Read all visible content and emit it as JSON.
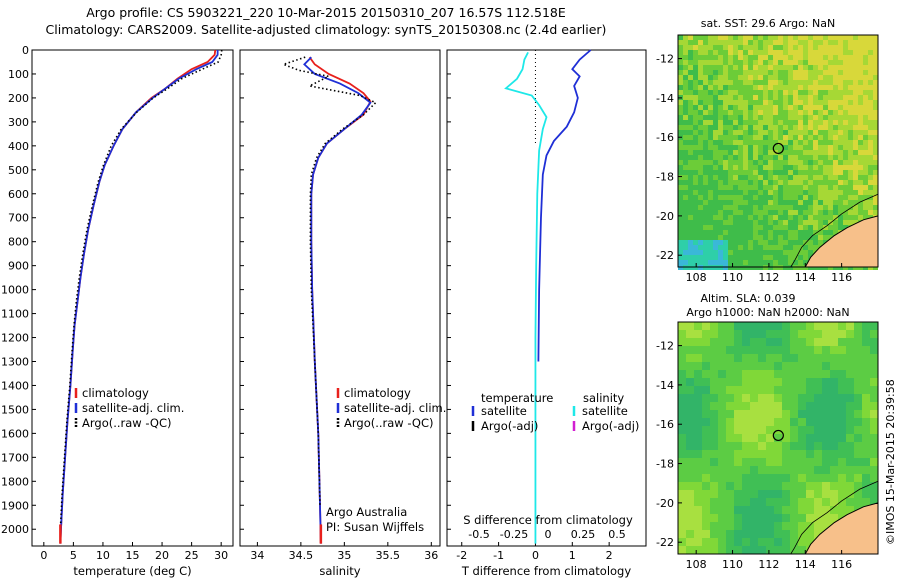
{
  "header": {
    "line1": "Argo profile: CS 5903221_220 10-Mar-2015 20150310_207 16.57S 112.518E",
    "line2": "Climatology: CARS2009. Satellite-adjusted climatology: synTS_20150308.nc (2.4d earlier)"
  },
  "side_stamp": "©IMOS 15-Mar-2015 20:39:58",
  "colors": {
    "climatology": "#e8201c",
    "satellite": "#1f2fd6",
    "argo": "#000000",
    "salinity_sat": "#1ee8e8",
    "salinity_argo": "#d21fd2",
    "land": "#f7c08a"
  },
  "chart_data": [
    {
      "type": "line",
      "panel": "temperature",
      "xlabel": "temperature (deg C)",
      "ylabel": "",
      "xlim": [
        -2,
        32
      ],
      "ylim": [
        2070,
        0
      ],
      "xticks": [
        0,
        5,
        10,
        15,
        20,
        25,
        30
      ],
      "yticks": [
        0,
        100,
        200,
        300,
        400,
        500,
        600,
        700,
        800,
        900,
        1000,
        1100,
        1200,
        1300,
        1400,
        1500,
        1600,
        1700,
        1800,
        1900,
        2000
      ],
      "legend": [
        "climatology",
        "satellite-adj. clim.",
        "Argo(..raw -QC)"
      ],
      "series": [
        {
          "name": "climatology",
          "style": "solid",
          "color": "climatology",
          "points": [
            [
              29.0,
              0
            ],
            [
              28.9,
              20
            ],
            [
              27.7,
              50
            ],
            [
              25.0,
              80
            ],
            [
              22.6,
              120
            ],
            [
              20.6,
              160
            ],
            [
              18.2,
              200
            ],
            [
              15.6,
              260
            ],
            [
              13.3,
              330
            ],
            [
              11.8,
              400
            ],
            [
              10.3,
              480
            ],
            [
              9.4,
              550
            ],
            [
              8.4,
              650
            ],
            [
              7.5,
              750
            ],
            [
              6.8,
              850
            ],
            [
              6.2,
              950
            ],
            [
              5.7,
              1050
            ],
            [
              5.2,
              1150
            ],
            [
              4.9,
              1250
            ],
            [
              4.5,
              1400
            ],
            [
              4.0,
              1550
            ],
            [
              3.6,
              1700
            ],
            [
              3.2,
              1850
            ],
            [
              2.9,
              2000
            ],
            [
              2.8,
              2060
            ]
          ]
        },
        {
          "name": "satellite-adj. clim.",
          "style": "solid",
          "color": "satellite",
          "points": [
            [
              29.4,
              0
            ],
            [
              29.4,
              20
            ],
            [
              28.5,
              50
            ],
            [
              25.8,
              80
            ],
            [
              22.8,
              120
            ],
            [
              20.6,
              160
            ],
            [
              18.4,
              200
            ],
            [
              15.6,
              260
            ],
            [
              13.3,
              330
            ],
            [
              11.8,
              400
            ],
            [
              10.3,
              480
            ],
            [
              9.4,
              550
            ],
            [
              8.4,
              650
            ],
            [
              7.5,
              750
            ],
            [
              6.8,
              850
            ],
            [
              6.2,
              950
            ],
            [
              5.7,
              1050
            ],
            [
              5.2,
              1150
            ],
            [
              4.9,
              1250
            ],
            [
              4.5,
              1400
            ],
            [
              4.0,
              1550
            ],
            [
              3.6,
              1700
            ],
            [
              3.2,
              1850
            ],
            [
              2.9,
              2000
            ],
            [
              2.8,
              2060
            ]
          ]
        },
        {
          "name": "Argo(..raw -QC)",
          "style": "dotted",
          "color": "argo",
          "points": [
            [
              30.1,
              0
            ],
            [
              30.0,
              20
            ],
            [
              29.5,
              50
            ],
            [
              26.8,
              80
            ],
            [
              23.3,
              120
            ],
            [
              21.0,
              160
            ],
            [
              18.5,
              200
            ],
            [
              15.7,
              260
            ],
            [
              13.1,
              330
            ],
            [
              11.4,
              400
            ],
            [
              10.1,
              480
            ],
            [
              9.2,
              550
            ],
            [
              8.2,
              650
            ],
            [
              7.3,
              750
            ],
            [
              6.6,
              850
            ],
            [
              6.0,
              950
            ],
            [
              5.5,
              1050
            ],
            [
              5.1,
              1150
            ],
            [
              4.8,
              1250
            ],
            [
              4.4,
              1400
            ],
            [
              3.9,
              1550
            ],
            [
              3.5,
              1700
            ],
            [
              3.1,
              1850
            ],
            [
              2.8,
              2000
            ]
          ]
        }
      ]
    },
    {
      "type": "line",
      "panel": "salinity",
      "xlabel": "salinity",
      "ylabel": "",
      "xlim": [
        33.8,
        36.1
      ],
      "ylim": [
        2070,
        0
      ],
      "xticks": [
        34,
        34.5,
        35,
        35.5,
        36
      ],
      "legend": [
        "climatology",
        "satellite-adj. clim.",
        "Argo(..raw -QC)"
      ],
      "annotation": [
        "Argo Australia",
        "PI: Susan Wijffels"
      ],
      "series": [
        {
          "name": "climatology",
          "style": "solid",
          "color": "climatology",
          "points": [
            [
              34.6,
              30
            ],
            [
              34.66,
              60
            ],
            [
              34.82,
              100
            ],
            [
              35.06,
              140
            ],
            [
              35.22,
              180
            ],
            [
              35.3,
              215
            ],
            [
              35.22,
              270
            ],
            [
              35.0,
              330
            ],
            [
              34.8,
              390
            ],
            [
              34.7,
              450
            ],
            [
              34.64,
              520
            ],
            [
              34.62,
              600
            ],
            [
              34.62,
              800
            ],
            [
              34.63,
              1000
            ],
            [
              34.66,
              1300
            ],
            [
              34.7,
              1600
            ],
            [
              34.72,
              1900
            ],
            [
              34.73,
              2060
            ]
          ]
        },
        {
          "name": "satellite-adj. clim.",
          "style": "solid",
          "color": "satellite",
          "points": [
            [
              34.62,
              30
            ],
            [
              34.54,
              60
            ],
            [
              34.66,
              100
            ],
            [
              34.95,
              140
            ],
            [
              35.16,
              180
            ],
            [
              35.3,
              220
            ],
            [
              35.2,
              270
            ],
            [
              35.0,
              330
            ],
            [
              34.8,
              390
            ],
            [
              34.7,
              450
            ],
            [
              34.64,
              520
            ],
            [
              34.62,
              600
            ],
            [
              34.62,
              800
            ],
            [
              34.63,
              1000
            ],
            [
              34.66,
              1300
            ],
            [
              34.7,
              1600
            ],
            [
              34.72,
              1900
            ],
            [
              34.73,
              2060
            ]
          ]
        },
        {
          "name": "Argo(..raw -QC)",
          "style": "dotted",
          "color": "argo",
          "points": [
            [
              34.55,
              30
            ],
            [
              34.3,
              60
            ],
            [
              34.48,
              85
            ],
            [
              34.82,
              110
            ],
            [
              34.6,
              150
            ],
            [
              35.18,
              190
            ],
            [
              35.36,
              220
            ],
            [
              35.22,
              270
            ],
            [
              34.98,
              330
            ],
            [
              34.78,
              390
            ],
            [
              34.68,
              450
            ],
            [
              34.62,
              520
            ],
            [
              34.61,
              600
            ],
            [
              34.61,
              800
            ],
            [
              34.62,
              1000
            ],
            [
              34.66,
              1300
            ],
            [
              34.7,
              1600
            ],
            [
              34.72,
              1900
            ]
          ]
        }
      ]
    },
    {
      "type": "line",
      "panel": "difference",
      "xlabel": "T difference from climatology",
      "secondary_xlabel": "S difference from climatology",
      "xlim": [
        -2.4,
        3.0
      ],
      "ylim": [
        2070,
        0
      ],
      "xticks": [
        -2,
        -1,
        0,
        1,
        2
      ],
      "secondary_xticks": [
        "-0.5",
        "-0.25",
        "0",
        "0.25",
        "0.5"
      ],
      "legend_headers": [
        "temperature",
        "salinity"
      ],
      "legend": [
        "satellite",
        "Argo(-adj)",
        "satellite",
        "Argo(-adj)"
      ],
      "series": [
        {
          "name": "temperature satellite",
          "color": "satellite",
          "points": [
            [
              1.5,
              0
            ],
            [
              1.2,
              40
            ],
            [
              1.0,
              80
            ],
            [
              1.2,
              110
            ],
            [
              1.05,
              150
            ],
            [
              1.15,
              200
            ],
            [
              1.05,
              260
            ],
            [
              0.85,
              320
            ],
            [
              0.5,
              380
            ],
            [
              0.3,
              440
            ],
            [
              0.2,
              520
            ],
            [
              0.15,
              700
            ],
            [
              0.1,
              1000
            ],
            [
              0.08,
              1300
            ]
          ]
        },
        {
          "name": "salinity satellite",
          "color": "salinity_sat",
          "points": [
            [
              -0.2,
              10
            ],
            [
              -0.3,
              40
            ],
            [
              -0.35,
              80
            ],
            [
              -0.5,
              120
            ],
            [
              -0.8,
              160
            ],
            [
              -0.1,
              190
            ],
            [
              0.1,
              230
            ],
            [
              0.3,
              280
            ],
            [
              0.2,
              330
            ],
            [
              0.1,
              420
            ],
            [
              0.05,
              600
            ],
            [
              0.02,
              900
            ],
            [
              0.0,
              1200
            ],
            [
              0.0,
              1500
            ],
            [
              0.0,
              1800
            ],
            [
              0.0,
              2060
            ]
          ]
        }
      ]
    }
  ],
  "maps": [
    {
      "title": "sat. SST: 29.6  Argo: NaN",
      "xticks": [
        "108",
        "110",
        "112",
        "114",
        "116"
      ],
      "yticks": [
        "-12",
        "-14",
        "-16",
        "-18",
        "-20",
        "-22"
      ],
      "lon_range": [
        107,
        118
      ],
      "lat_range": [
        -22.6,
        -10.8
      ],
      "marker": [
        112.518,
        -16.57
      ]
    },
    {
      "title_line1": "Altim. SLA: 0.039",
      "title_line2": "Argo h1000: NaN h2000: NaN",
      "xticks": [
        "108",
        "110",
        "112",
        "114",
        "116"
      ],
      "yticks": [
        "-12",
        "-14",
        "-16",
        "-18",
        "-20",
        "-22"
      ],
      "lon_range": [
        107,
        118
      ],
      "lat_range": [
        -22.6,
        -10.8
      ],
      "marker": [
        112.518,
        -16.57
      ]
    }
  ]
}
